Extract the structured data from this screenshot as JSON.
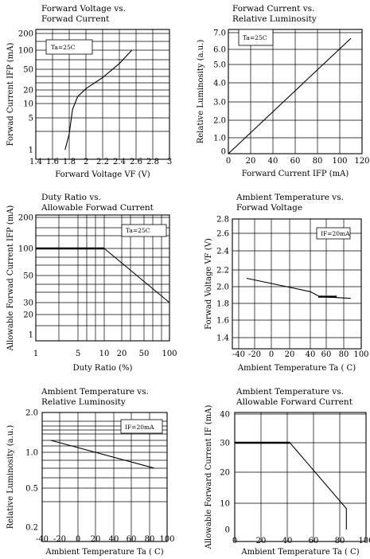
{
  "chart_data": [
    {
      "id": "c1",
      "type": "line",
      "title": [
        "Forward Voltage vs.",
        "Forwad Current"
      ],
      "xlabel": "Forward Voltage VF (V)",
      "ylabel": "Forwad Current IFP (mA)",
      "annotation": "Ta=25C",
      "x_ticks": [
        "1.4",
        "1.6",
        "1.8",
        "2",
        "2.2",
        "2.4",
        "2.6",
        "2.8",
        "3"
      ],
      "y_ticks": [
        "1",
        "5",
        "10",
        "20",
        "50",
        "100",
        "200"
      ],
      "xlim": [
        1.4,
        3.0
      ],
      "ylim": [
        1,
        200
      ],
      "yscale": "log",
      "grid": true,
      "series": [
        {
          "points": [
            [
              1.75,
              1
            ],
            [
              1.8,
              3
            ],
            [
              1.84,
              8
            ],
            [
              1.9,
              15
            ],
            [
              2.0,
              22
            ],
            [
              2.2,
              38
            ],
            [
              2.4,
              65
            ],
            [
              2.55,
              100
            ]
          ]
        }
      ]
    },
    {
      "id": "c2",
      "type": "line",
      "title": [
        "Forwad Current vs.",
        "Relative Luminosity"
      ],
      "xlabel": "Forward Current IFP (mA)",
      "ylabel": "Relative Luminosity (a.u.)",
      "annotation": "Ta=25C",
      "x_ticks": [
        "0",
        "20",
        "40",
        "60",
        "80",
        "100",
        "120"
      ],
      "y_ticks": [
        "0",
        "1.0",
        "2.0",
        "3.0",
        "4.0",
        "5.0",
        "6.0",
        "7.0"
      ],
      "xlim": [
        0,
        120
      ],
      "ylim": [
        0,
        7
      ],
      "grid": true,
      "series": [
        {
          "points": [
            [
              0,
              0
            ],
            [
              110,
              6.5
            ]
          ]
        }
      ]
    },
    {
      "id": "c3",
      "type": "line",
      "title": [
        "Duty Ratio vs.",
        "Allowable Forwad Current"
      ],
      "xlabel": "Duty Ratio (%)",
      "ylabel": "Allowable Forwad Current IFP (mA)",
      "annotation": "Ta=25C",
      "x_ticks": [
        "1",
        "5",
        "10",
        "20",
        "50",
        "100"
      ],
      "y_ticks": [
        "1",
        "20",
        "30",
        "50",
        "100",
        "200"
      ],
      "xlim": [
        1,
        100
      ],
      "ylim": [
        1,
        200
      ],
      "xscale": "log",
      "yscale": "log",
      "grid": true,
      "series": [
        {
          "points": [
            [
              1,
              100
            ],
            [
              10,
              100
            ]
          ],
          "style": "thick"
        },
        {
          "points": [
            [
              10,
              100
            ],
            [
              100,
              30
            ]
          ]
        }
      ]
    },
    {
      "id": "c4",
      "type": "line",
      "title": [
        "Ambient Temperature vs.",
        "Forwad Voltage"
      ],
      "xlabel": "Ambient Temperature Ta ( C)",
      "ylabel": "Forwad Voltage VF (V)",
      "annotation": "IF=20mA",
      "x_ticks": [
        "-40",
        "-20",
        "0",
        "20",
        "40",
        "60",
        "80",
        "100"
      ],
      "y_ticks": [
        "1.4",
        "1.6",
        "1.8",
        "2.0",
        "2.2",
        "2.4",
        "2.6",
        "2.8"
      ],
      "xlim": [
        -40,
        100
      ],
      "ylim": [
        1.3,
        2.8
      ],
      "grid": true,
      "series": [
        {
          "points": [
            [
              -30,
              2.1
            ],
            [
              40,
              1.94
            ],
            [
              52,
              1.88
            ],
            [
              88,
              1.86
            ]
          ]
        },
        {
          "points": [
            [
              50,
              1.88
            ],
            [
              72,
              1.88
            ]
          ],
          "style": "thick"
        }
      ]
    },
    {
      "id": "c5",
      "type": "line",
      "title": [
        "Ambient Temperature vs.",
        "Relative Luminosity"
      ],
      "xlabel": "Ambient Temperature Ta ( C)",
      "ylabel": "Relative Luminosity (a.u.)",
      "annotation": "IF=20mA",
      "x_ticks": [
        "-40",
        "-20",
        "0",
        "20",
        "40",
        "60",
        "80",
        "100"
      ],
      "y_ticks": [
        "0.2",
        "0.5",
        "1.0",
        "2.0"
      ],
      "xlim": [
        -40,
        100
      ],
      "ylim": [
        0.2,
        2.0
      ],
      "yscale": "log",
      "grid": true,
      "series": [
        {
          "points": [
            [
              -30,
              1.3
            ],
            [
              85,
              0.78
            ]
          ]
        }
      ]
    },
    {
      "id": "c6",
      "type": "line",
      "title": [
        "Ambient Temperature vs.",
        "Allowable Forward Current"
      ],
      "xlabel": "Ambient Temperature Ta ( C)",
      "ylabel": "Allowable Forward Current IF (mA)",
      "x_ticks": [
        "0",
        "20",
        "40",
        "60",
        "80",
        "100"
      ],
      "y_ticks": [
        "0",
        "10",
        "20",
        "30",
        "40"
      ],
      "xlim": [
        0,
        100
      ],
      "ylim": [
        0,
        40
      ],
      "grid": true,
      "series": [
        {
          "points": [
            [
              0,
              30
            ],
            [
              42,
              30
            ]
          ],
          "style": "thick"
        },
        {
          "points": [
            [
              42,
              30
            ],
            [
              85,
              8
            ],
            [
              85,
              0
            ]
          ]
        }
      ]
    }
  ]
}
